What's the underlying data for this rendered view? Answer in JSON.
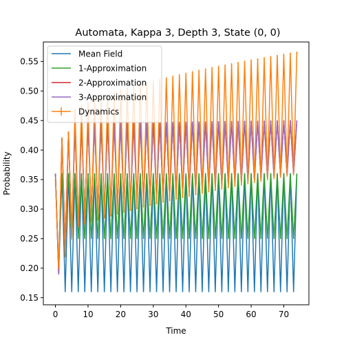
{
  "chart_data": {
    "type": "line",
    "title": "Automata, Kappa 3, Depth 3, State (0, 0)",
    "xlabel": "Time",
    "ylabel": "Probability",
    "xlim": [
      -3.7,
      77.7
    ],
    "ylim": [
      0.138,
      0.583
    ],
    "xticks": [
      0,
      10,
      20,
      30,
      40,
      50,
      60,
      70
    ],
    "yticks": [
      0.15,
      0.2,
      0.25,
      0.3,
      0.35,
      0.4,
      0.45,
      0.5,
      0.55
    ],
    "ytick_labels": [
      "0.15",
      "0.20",
      "0.25",
      "0.30",
      "0.35",
      "0.40",
      "0.45",
      "0.50",
      "0.55"
    ],
    "grid": false,
    "legend_position": "upper-left",
    "t_max": 74,
    "series": [
      {
        "name": "Mean Field",
        "color": "#1f77b4",
        "description": "alternating: even t = 0.36, odd t = 0.16",
        "initial": [
          0.36,
          0.19
        ],
        "even_value": 0.36,
        "odd_value": 0.16
      },
      {
        "name": "1-Approximation",
        "color": "#2ca02c",
        "initial": [
          0.36,
          0.2
        ],
        "even_value": 0.36,
        "odd_value": 0.25
      },
      {
        "name": "2-Approximation",
        "color": "#d62728",
        "initial": [
          0.36,
          0.19,
          0.42,
          0.24,
          0.43,
          0.26,
          0.44,
          0.27
        ],
        "even_start": 0.44,
        "even_end": 0.45,
        "odd_start": 0.27,
        "odd_end": 0.36
      },
      {
        "name": "3-Approximation",
        "color": "#9467bd",
        "initial": [
          0.36,
          0.19,
          0.42,
          0.24,
          0.43,
          0.26,
          0.44,
          0.27
        ],
        "even_start": 0.44,
        "even_end": 0.45,
        "odd_start": 0.27,
        "odd_end": 0.36
      },
      {
        "name": "Dynamics",
        "color": "#ff7f0e",
        "errorbars": true,
        "initial": [
          0.35,
          0.2,
          0.42,
          0.22,
          0.43,
          0.25
        ],
        "even_start": 0.43,
        "even_end": 0.565,
        "odd_start": 0.25,
        "odd_end": 0.36
      }
    ]
  }
}
